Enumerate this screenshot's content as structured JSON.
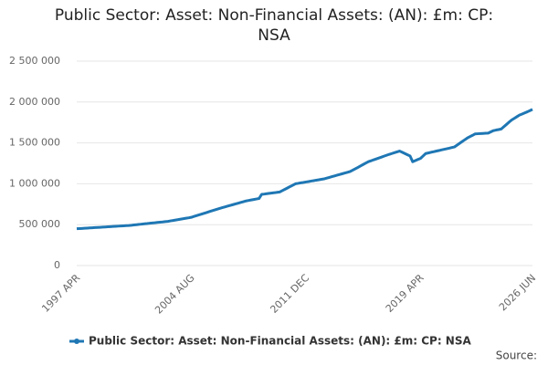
{
  "chart_data": {
    "type": "line",
    "title": "Public Sector: Asset: Non-Financial Assets: (AN): £m: CP: NSA",
    "source": "Source:",
    "categories": [
      "1997 APR",
      null,
      null,
      null,
      null,
      null,
      null,
      null,
      null,
      null,
      null,
      null,
      null,
      null,
      null,
      null,
      null,
      null,
      null,
      null,
      null,
      null,
      null,
      null,
      null,
      null,
      null,
      null,
      null,
      null,
      null,
      null,
      null,
      null,
      null,
      null,
      null,
      null,
      null,
      null,
      null,
      null,
      null,
      null,
      "2004 AUG",
      null,
      null,
      null,
      null,
      null,
      null,
      null,
      null,
      null,
      null,
      null,
      null,
      null,
      null,
      null,
      null,
      null,
      null,
      null,
      null,
      null,
      null,
      null,
      null,
      null,
      null,
      null,
      null,
      null,
      null,
      null,
      null,
      null,
      null,
      null,
      null,
      null,
      null,
      null,
      null,
      null,
      null,
      null,
      "2011 DEC",
      null,
      null,
      null,
      null,
      null,
      null,
      null,
      null,
      null,
      null,
      null,
      null,
      null,
      null,
      null,
      null,
      null,
      null,
      null,
      null,
      null,
      null,
      null,
      null,
      null,
      null,
      null,
      null,
      null,
      null,
      null,
      null,
      null,
      null,
      null,
      null,
      null,
      null,
      null,
      null,
      null,
      null,
      null,
      "2019 APR",
      null,
      null,
      null,
      null,
      null,
      null,
      null,
      null,
      null,
      null,
      null,
      null,
      null,
      null,
      null,
      null,
      null,
      null,
      null,
      null,
      null,
      null,
      null,
      null,
      null,
      null,
      null,
      null,
      null,
      null,
      null,
      null,
      null,
      null,
      null,
      null,
      null,
      null,
      null,
      null,
      null,
      null,
      "2026 JUN"
    ],
    "series": [
      {
        "name": "Public Sector: Asset: Non-Financial Assets: (AN): £m: CP: NSA",
        "color": "#1f77b4",
        "values": [
          450000,
          452000,
          454000,
          456000,
          458000,
          460000,
          462000,
          464000,
          466000,
          468000,
          470000,
          472000,
          474000,
          476000,
          478000,
          480000,
          482000,
          484000,
          486000,
          488000,
          490000,
          493000,
          497000,
          500000,
          503000,
          507000,
          510000,
          513000,
          517000,
          520000,
          523000,
          527000,
          530000,
          533000,
          537000,
          540000,
          546000,
          551000,
          557000,
          562000,
          568000,
          573000,
          579000,
          584000,
          590000,
          600000,
          610000,
          620000,
          630000,
          640000,
          650000,
          660000,
          670000,
          680000,
          690000,
          700000,
          709000,
          718000,
          727000,
          736000,
          745000,
          754000,
          763000,
          772000,
          781000,
          790000,
          796000,
          802000,
          808000,
          814000,
          820000,
          870000,
          874000,
          879000,
          883000,
          887000,
          891000,
          896000,
          900000,
          917000,
          933000,
          950000,
          967000,
          983000,
          1000000,
          1005000,
          1011000,
          1016000,
          1022000,
          1027000,
          1033000,
          1038000,
          1044000,
          1049000,
          1055000,
          1060000,
          1069000,
          1078000,
          1087000,
          1096000,
          1105000,
          1114000,
          1123000,
          1132000,
          1141000,
          1150000,
          1167000,
          1184000,
          1201000,
          1219000,
          1236000,
          1253000,
          1270000,
          1281000,
          1293000,
          1304000,
          1315000,
          1326000,
          1338000,
          1349000,
          1360000,
          1370000,
          1380000,
          1390000,
          1400000,
          1385000,
          1370000,
          1355000,
          1340000,
          1270000,
          1283000,
          1297000,
          1310000,
          1340000,
          1370000,
          1377000,
          1385000,
          1392000,
          1399000,
          1406000,
          1414000,
          1421000,
          1428000,
          1435000,
          1443000,
          1450000,
          1472000,
          1494000,
          1516000,
          1538000,
          1560000,
          1577000,
          1593000,
          1610000,
          1612000,
          1614000,
          1616000,
          1618000,
          1620000,
          1635000,
          1650000,
          1657000,
          1663000,
          1670000,
          1698000,
          1725000,
          1753000,
          1780000,
          1800000,
          1820000,
          1840000,
          1853000,
          1867000,
          1880000,
          1895000,
          1910000
        ]
      }
    ],
    "ylim": [
      0,
      2500000
    ],
    "yticks": [
      0,
      {
        "value": 500000,
        "label": "500 000"
      },
      {
        "value": 1000000,
        "label": "1 000 000"
      },
      {
        "value": 1500000,
        "label": "1 500 000"
      },
      {
        "value": 2000000,
        "label": "2 000 000"
      },
      {
        "value": 2500000,
        "label": "2 500 000"
      }
    ],
    "grid": true
  }
}
